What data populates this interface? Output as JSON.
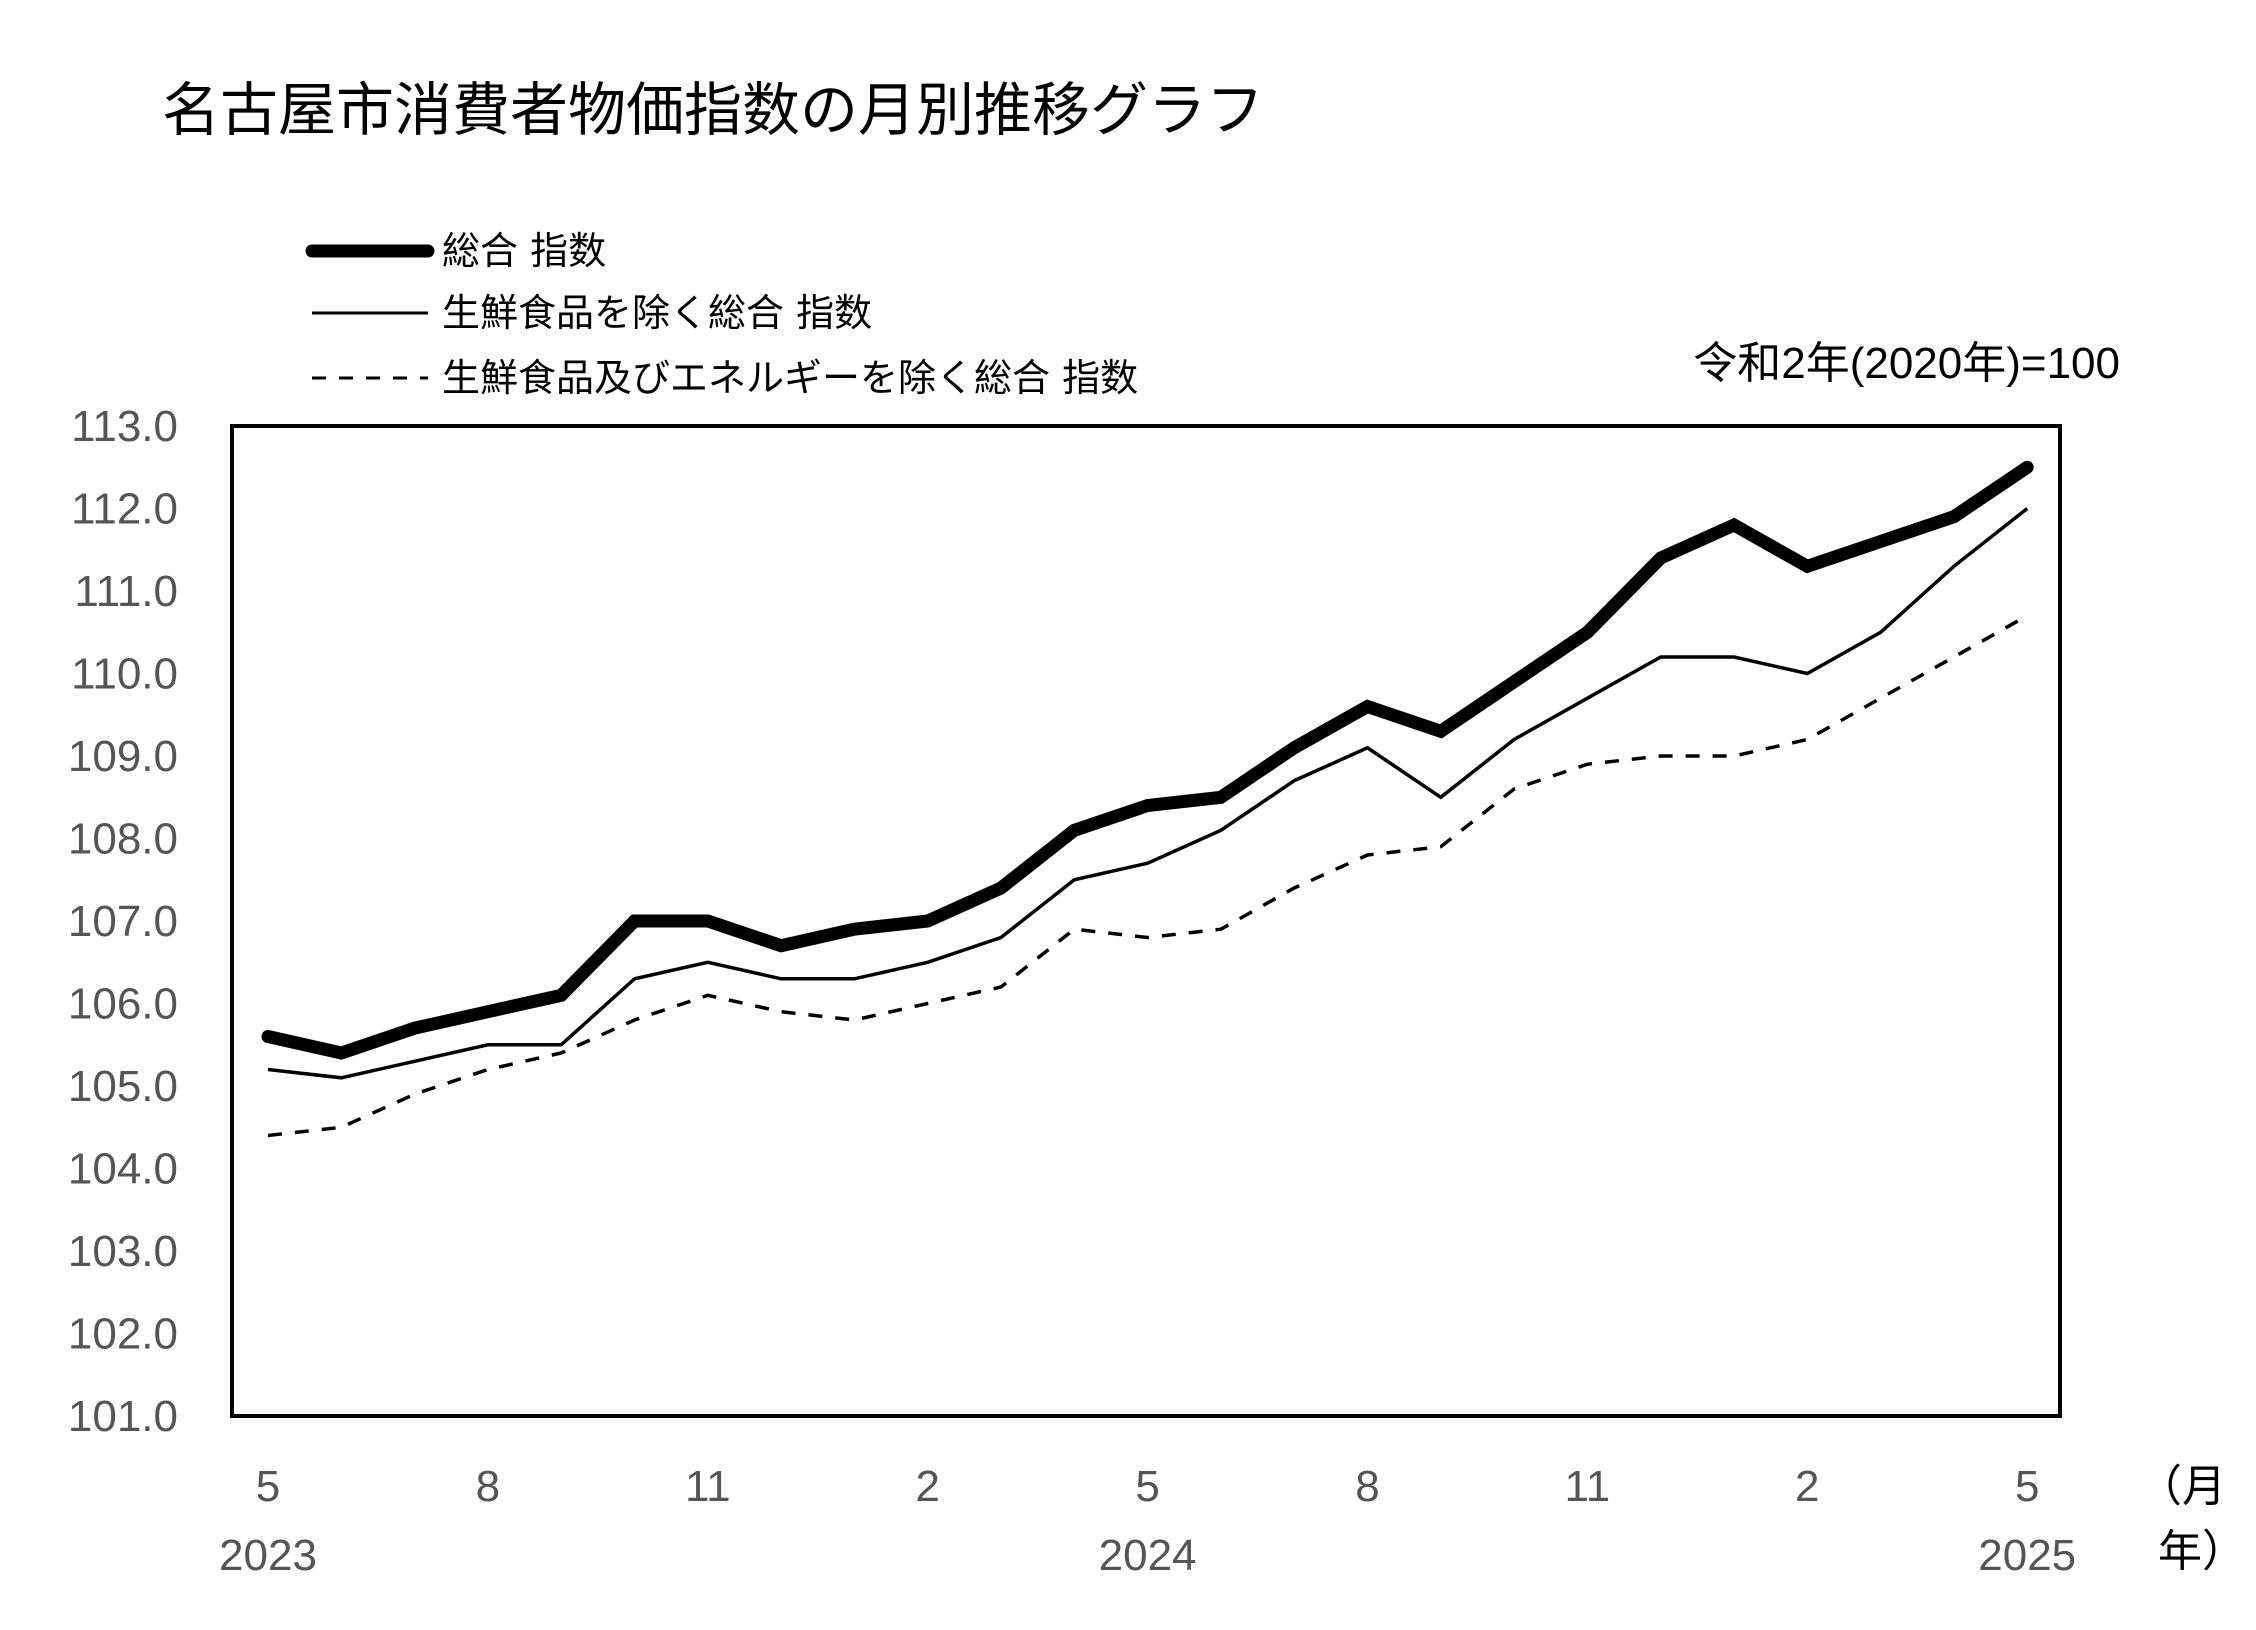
{
  "chart_data": {
    "type": "line",
    "title": "名古屋市消費者物価指数の月別推移グラフ",
    "note": "令和2年(2020年)=100",
    "ylim": [
      101.0,
      113.0
    ],
    "ytick_labels": [
      "101.0",
      "102.0",
      "103.0",
      "104.0",
      "105.0",
      "106.0",
      "107.0",
      "108.0",
      "109.0",
      "110.0",
      "111.0",
      "112.0",
      "113.0"
    ],
    "x": [
      "2023-05",
      "2023-06",
      "2023-07",
      "2023-08",
      "2023-09",
      "2023-10",
      "2023-11",
      "2023-12",
      "2024-01",
      "2024-02",
      "2024-03",
      "2024-04",
      "2024-05",
      "2024-06",
      "2024-07",
      "2024-08",
      "2024-09",
      "2024-10",
      "2024-11",
      "2024-12",
      "2025-01",
      "2025-02",
      "2025-03",
      "2025-04",
      "2025-05"
    ],
    "month_ticks": [
      "5",
      "8",
      "11",
      "2",
      "5",
      "8",
      "11",
      "2",
      "5"
    ],
    "year_ticks": [
      "2023",
      "2024",
      "2025"
    ],
    "x_unit_month": "（月",
    "x_unit_year": "年）",
    "legend_position": "top-left",
    "grid": false,
    "series": [
      {
        "name": "総合 指数",
        "style": "thick",
        "values": [
          105.6,
          105.4,
          105.7,
          105.9,
          106.1,
          107.0,
          107.0,
          106.7,
          106.9,
          107.0,
          107.4,
          108.1,
          108.4,
          108.5,
          109.1,
          109.6,
          109.3,
          109.9,
          110.5,
          111.4,
          111.8,
          111.3,
          111.6,
          111.9,
          112.5
        ]
      },
      {
        "name": "生鮮食品を除く総合 指数",
        "style": "thin",
        "values": [
          105.2,
          105.1,
          105.3,
          105.5,
          105.5,
          106.3,
          106.5,
          106.3,
          106.3,
          106.5,
          106.8,
          107.5,
          107.7,
          108.1,
          108.7,
          109.1,
          108.5,
          109.2,
          109.7,
          110.2,
          110.2,
          110.0,
          110.5,
          111.3,
          112.0
        ]
      },
      {
        "name": "生鮮食品及びエネルギーを除く総合 指数",
        "style": "dashed",
        "values": [
          104.4,
          104.5,
          104.9,
          105.2,
          105.4,
          105.8,
          106.1,
          105.9,
          105.8,
          106.0,
          106.2,
          106.9,
          106.8,
          106.9,
          107.4,
          107.8,
          107.9,
          108.6,
          108.9,
          109.0,
          109.0,
          109.2,
          109.7,
          110.2,
          110.7
        ]
      }
    ]
  }
}
